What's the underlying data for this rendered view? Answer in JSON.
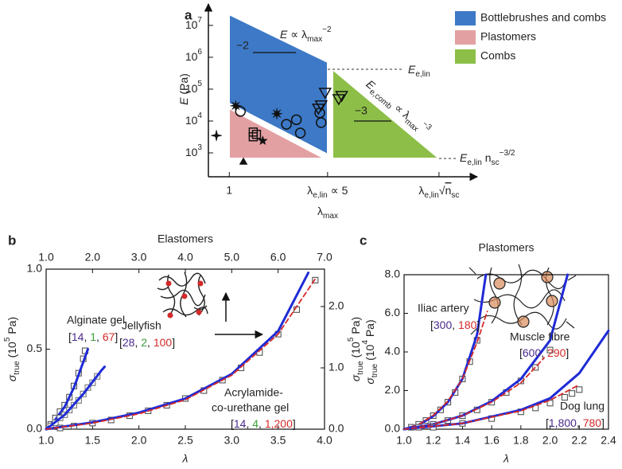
{
  "chart_data": [
    {
      "panel": "a",
      "type": "scatter",
      "xscale": "log",
      "yscale": "log",
      "xlabel": [
        {
          "text": "λ"
        },
        {
          "text": "max",
          "sub": true
        }
      ],
      "ylabel": [
        {
          "text": "E",
          "italic": true
        },
        {
          "text": " (Pa)"
        }
      ],
      "xlim": [
        0.71,
        58
      ],
      "ylim": [
        178,
        47000000
      ],
      "xticks": [
        1,
        {
          "value": 5,
          "label": [
            {
              "text": "λ"
            },
            {
              "text": "e,lin",
              "sub": true
            },
            {
              "text": " ∝ 5"
            }
          ]
        },
        {
          "value": 31,
          "label": [
            {
              "text": "λ"
            },
            {
              "text": "e,lin",
              "sub": true
            },
            {
              "text": "√"
            },
            {
              "text": "n",
              "overline": true
            },
            {
              "text": "sc",
              "sub": true
            }
          ]
        }
      ],
      "yticks": [
        {
          "value": 1000,
          "label": [
            {
              "text": "10"
            },
            {
              "text": "3",
              "sup": true
            }
          ]
        },
        {
          "value": 10000,
          "label": [
            {
              "text": "10"
            },
            {
              "text": "4",
              "sup": true
            }
          ]
        },
        {
          "value": 100000,
          "label": [
            {
              "text": "10"
            },
            {
              "text": "5",
              "sup": true
            }
          ]
        },
        {
          "value": 1000000,
          "label": [
            {
              "text": "10"
            },
            {
              "text": "6",
              "sup": true
            }
          ]
        },
        {
          "value": 10000000,
          "label": [
            {
              "text": "10"
            },
            {
              "text": "7",
              "sup": true
            }
          ]
        }
      ],
      "legend": [
        {
          "name": "Bottlebrushes and combs",
          "color": "#3d79c6"
        },
        {
          "name": "Plastomers",
          "color": "#e3a0a3"
        },
        {
          "name": "Combs",
          "color": "#8dbf48"
        }
      ],
      "annotations": [
        [
          {
            "text": "E",
            "italic": true
          },
          {
            "text": " ∝ λ"
          },
          {
            "text": "max",
            "sub": true
          },
          {
            "text": "−2",
            "sup": true
          }
        ],
        "−2",
        "−3",
        [
          {
            "text": "E",
            "italic": true
          },
          {
            "text": "e,lin",
            "sub": true
          }
        ],
        [
          {
            "text": "E",
            "italic": true
          },
          {
            "text": "e,comb",
            "sub": true
          },
          {
            "text": " ∝ λ"
          },
          {
            "text": "max",
            "sub": true
          },
          {
            "text": "−3",
            "sup": true
          }
        ],
        [
          {
            "text": "E",
            "italic": true
          },
          {
            "text": "e,lin",
            "sub": true
          },
          {
            "text": " n"
          },
          {
            "text": "sc",
            "sub": true
          },
          {
            "text": "−3/2",
            "sup": true
          }
        ]
      ],
      "series": [
        {
          "marker": "circle",
          "color": "#111111",
          "x": [
            1.2,
            2.55,
            3.0,
            3.2,
            4.4,
            4.5
          ],
          "values": [
            20000,
            7900,
            11000,
            4200,
            18000,
            8900
          ]
        },
        {
          "marker": "triangle-down",
          "color": "#111111",
          "x": [
            4.8,
            4.5,
            4.3,
            6.0,
            6.3
          ],
          "values": [
            79000,
            32000,
            25000,
            50000,
            63000
          ]
        },
        {
          "marker": "square",
          "color": "#111111",
          "x": [
            1.48,
            1.56,
            1.48
          ],
          "values": [
            4500,
            3800,
            3200
          ]
        },
        {
          "marker": "asterisk",
          "color": "#111111",
          "x": [
            1.11,
            2.18
          ],
          "values": [
            30000,
            17000
          ]
        },
        {
          "marker": "star5",
          "color": "#111111",
          "x": [
            1.73
          ],
          "values": [
            2400
          ]
        },
        {
          "marker": "star4",
          "color": "#111111",
          "x": [
            0.81
          ],
          "values": [
            3500
          ]
        },
        {
          "marker": "triangle-up",
          "color": "#111111",
          "x": [
            1.26
          ],
          "values": [
            530
          ]
        }
      ]
    },
    {
      "panel": "b",
      "type": "line",
      "title": "Elastomers",
      "xlabel": "λ",
      "ylabel": [
        {
          "text": "σ",
          "italic": true
        },
        {
          "text": "true",
          "sub": true
        },
        {
          "text": " (10"
        },
        {
          "text": "5",
          "sup": true
        },
        {
          "text": " Pa)"
        }
      ],
      "y2label": [
        {
          "text": "σ",
          "italic": true
        },
        {
          "text": "true",
          "sub": true
        },
        {
          "text": " (10"
        },
        {
          "text": "5",
          "sup": true
        },
        {
          "text": " Pa)"
        }
      ],
      "xlim": [
        1,
        4
      ],
      "xticks": [
        {
          "value": 1,
          "label": "1.0"
        },
        1.5,
        {
          "value": 2,
          "label": "2.0"
        },
        2.5,
        {
          "value": 3,
          "label": "3.0"
        },
        3.5,
        {
          "value": 4,
          "label": "4.0"
        }
      ],
      "x2lim": [
        1,
        7
      ],
      "x2ticks": [
        {
          "value": 1,
          "label": "1.0"
        },
        {
          "value": 2,
          "label": "2.0"
        },
        {
          "value": 3,
          "label": "3.0"
        },
        {
          "value": 4,
          "label": "4.0"
        },
        {
          "value": 5,
          "label": "5.0"
        },
        {
          "value": 6,
          "label": "6.0"
        },
        {
          "value": 7,
          "label": "7.0"
        }
      ],
      "ylim": [
        0,
        1
      ],
      "yticks": [
        {
          "value": 0,
          "label": "0.0"
        },
        0.5,
        {
          "value": 1,
          "label": "1.0"
        }
      ],
      "y2lim": [
        0,
        2.61
      ],
      "y2ticks": [
        {
          "value": 0,
          "label": "0.0"
        },
        {
          "value": 1,
          "label": "1.0"
        },
        {
          "value": 2,
          "label": "2.0"
        }
      ],
      "annotations": [
        "Alginate gel",
        [
          {
            "text": "[",
            "color": "#222222"
          },
          {
            "text": "14",
            "color": "#4a2a8c"
          },
          {
            "text": ", ",
            "color": "#222222"
          },
          {
            "text": "1",
            "color": "#3aa13a"
          },
          {
            "text": ", ",
            "color": "#222222"
          },
          {
            "text": "67",
            "color": "#d42a2a"
          },
          {
            "text": "]",
            "color": "#222222"
          }
        ],
        "Jellyfish",
        [
          {
            "text": "[",
            "color": "#222222"
          },
          {
            "text": "28",
            "color": "#4a2a8c"
          },
          {
            "text": ", ",
            "color": "#222222"
          },
          {
            "text": "2",
            "color": "#3aa13a"
          },
          {
            "text": ", ",
            "color": "#222222"
          },
          {
            "text": "100",
            "color": "#d42a2a"
          },
          {
            "text": "]",
            "color": "#222222"
          }
        ],
        "Acrylamide-",
        "co-urethane gel",
        [
          {
            "text": "[",
            "color": "#222222"
          },
          {
            "text": "14",
            "color": "#4a2a8c"
          },
          {
            "text": ", ",
            "color": "#222222"
          },
          {
            "text": "4",
            "color": "#3aa13a"
          },
          {
            "text": ", ",
            "color": "#222222"
          },
          {
            "text": "1,200",
            "color": "#d42a2a"
          },
          {
            "text": "]",
            "color": "#222222"
          }
        ]
      ],
      "series": [
        {
          "style": "markers",
          "color": "#555555",
          "x": [
            1.05,
            1.1,
            1.15,
            1.2,
            1.25,
            1.3,
            1.35,
            1.4,
            1.42
          ],
          "values": [
            0.03,
            0.07,
            0.11,
            0.15,
            0.2,
            0.27,
            0.35,
            0.44,
            0.49
          ]
        },
        {
          "style": "line",
          "color": "#1f2bd6",
          "x": [
            1.0,
            1.1,
            1.2,
            1.3,
            1.4,
            1.45
          ],
          "values": [
            0,
            0.06,
            0.14,
            0.26,
            0.42,
            0.5
          ]
        },
        {
          "style": "markers",
          "color": "#777777",
          "x": [
            1.05,
            1.1,
            1.15,
            1.2,
            1.25,
            1.3,
            1.35,
            1.4,
            1.45,
            1.5,
            1.55
          ],
          "values": [
            0.02,
            0.04,
            0.07,
            0.09,
            0.12,
            0.15,
            0.18,
            0.22,
            0.26,
            0.29,
            0.33
          ]
        },
        {
          "style": "line",
          "color": "#1f2bd6",
          "x": [
            1.0,
            1.2,
            1.4,
            1.6,
            1.63
          ],
          "values": [
            0,
            0.09,
            0.22,
            0.37,
            0.39
          ]
        },
        {
          "style": "markers",
          "color": "#555555",
          "xaxis": "x2",
          "axis": "y2",
          "x": [
            1.3,
            1.6,
            2.0,
            2.4,
            2.8,
            3.2,
            3.6,
            4.0,
            4.4,
            4.8,
            5.2,
            5.6,
            6.0,
            6.4,
            6.8
          ],
          "values": [
            0.02,
            0.05,
            0.1,
            0.15,
            0.22,
            0.3,
            0.39,
            0.5,
            0.63,
            0.8,
            1.0,
            1.25,
            1.55,
            1.95,
            2.43
          ]
        },
        {
          "style": "line",
          "color": "#1f2bd6",
          "xaxis": "x2",
          "axis": "y2",
          "x": [
            1,
            2,
            3,
            4,
            5,
            6,
            6.65
          ],
          "values": [
            0,
            0.11,
            0.27,
            0.5,
            0.9,
            1.6,
            2.55
          ]
        },
        {
          "style": "dashed",
          "color": "#d42a2a",
          "xaxis": "x2",
          "axis": "y2",
          "x": [
            1,
            2,
            3,
            4,
            5,
            6,
            6.8
          ],
          "values": [
            0,
            0.1,
            0.25,
            0.48,
            0.88,
            1.55,
            2.45
          ]
        }
      ]
    },
    {
      "panel": "c",
      "type": "line",
      "title": "Plastomers",
      "xlabel": "λ",
      "ylabel": [
        {
          "text": "σ",
          "italic": true
        },
        {
          "text": "true",
          "sub": true
        },
        {
          "text": " (10"
        },
        {
          "text": "4",
          "sup": true
        },
        {
          "text": " Pa)"
        }
      ],
      "xlim": [
        1,
        2.4
      ],
      "xticks": [
        {
          "value": 1,
          "label": "1.0"
        },
        1.2,
        1.4,
        1.6,
        1.8,
        {
          "value": 2,
          "label": "2.0"
        },
        2.2,
        2.4
      ],
      "ylim": [
        0,
        8
      ],
      "yticks": [
        {
          "value": 0,
          "label": "0.0"
        },
        {
          "value": 2,
          "label": "2.0"
        },
        {
          "value": 4,
          "label": "4.0"
        },
        {
          "value": 6,
          "label": "6.0"
        },
        {
          "value": 8,
          "label": "8.0"
        }
      ],
      "annotations": [
        "Iliac artery",
        [
          {
            "text": "[",
            "color": "#222222"
          },
          {
            "text": "300",
            "color": "#4a2a8c"
          },
          {
            "text": ", ",
            "color": "#222222"
          },
          {
            "text": "180",
            "color": "#d42a2a"
          },
          {
            "text": "]",
            "color": "#222222"
          }
        ],
        "Muscle fibre",
        [
          {
            "text": "[",
            "color": "#222222"
          },
          {
            "text": "600",
            "color": "#4a2a8c"
          },
          {
            "text": ", ",
            "color": "#222222"
          },
          {
            "text": "290",
            "color": "#d42a2a"
          },
          {
            "text": "]",
            "color": "#222222"
          }
        ],
        "Dog lung",
        [
          {
            "text": "[",
            "color": "#222222"
          },
          {
            "text": "1,800",
            "color": "#4a2a8c"
          },
          {
            "text": ", ",
            "color": "#222222"
          },
          {
            "text": "780",
            "color": "#d42a2a"
          },
          {
            "text": "]",
            "color": "#222222"
          }
        ]
      ],
      "series": [
        {
          "style": "markers",
          "color": "#555555",
          "x": [
            1.05,
            1.1,
            1.15,
            1.2,
            1.25,
            1.3,
            1.35,
            1.4,
            1.45,
            1.5
          ],
          "values": [
            0.1,
            0.25,
            0.45,
            0.7,
            1.0,
            1.4,
            1.9,
            2.6,
            3.5,
            4.6
          ]
        },
        {
          "style": "line",
          "color": "#1f2bd6",
          "x": [
            1.0,
            1.1,
            1.2,
            1.3,
            1.4,
            1.5,
            1.56
          ],
          "values": [
            0,
            0.22,
            0.68,
            1.4,
            2.6,
            4.9,
            8.0
          ]
        },
        {
          "style": "dashed",
          "color": "#d42a2a",
          "x": [
            1.0,
            1.1,
            1.2,
            1.3,
            1.4,
            1.5,
            1.57
          ],
          "values": [
            0,
            0.24,
            0.72,
            1.45,
            2.6,
            4.5,
            6.1
          ]
        },
        {
          "style": "markers",
          "color": "#555555",
          "x": [
            1.1,
            1.2,
            1.3,
            1.4,
            1.5,
            1.6,
            1.7,
            1.8,
            1.9,
            2.0
          ],
          "values": [
            0.1,
            0.25,
            0.45,
            0.7,
            1.0,
            1.4,
            1.9,
            2.5,
            3.2,
            4.1
          ]
        },
        {
          "style": "line",
          "color": "#1f2bd6",
          "x": [
            1.0,
            1.2,
            1.4,
            1.6,
            1.8,
            2.0,
            2.12
          ],
          "values": [
            0,
            0.25,
            0.7,
            1.45,
            2.6,
            4.6,
            8.0
          ]
        },
        {
          "style": "dashed",
          "color": "#d42a2a",
          "x": [
            1.0,
            1.2,
            1.4,
            1.6,
            1.8,
            1.96
          ],
          "values": [
            0,
            0.25,
            0.7,
            1.4,
            2.4,
            3.7
          ]
        },
        {
          "style": "markers",
          "color": "#555555",
          "x": [
            1.2,
            1.4,
            1.6,
            1.8,
            1.9,
            2.0,
            2.1,
            2.15,
            2.2
          ],
          "values": [
            0.1,
            0.3,
            0.55,
            0.9,
            1.1,
            1.35,
            1.65,
            1.85,
            2.05
          ]
        },
        {
          "style": "line",
          "color": "#1f2bd6",
          "x": [
            1.0,
            1.4,
            1.8,
            2.0,
            2.2,
            2.4
          ],
          "values": [
            0,
            0.3,
            1.0,
            1.6,
            2.9,
            5.1
          ]
        },
        {
          "style": "dashed",
          "color": "#d42a2a",
          "x": [
            1.0,
            1.4,
            1.8,
            2.0,
            2.2
          ],
          "values": [
            0,
            0.3,
            0.95,
            1.5,
            2.3
          ]
        }
      ]
    }
  ]
}
